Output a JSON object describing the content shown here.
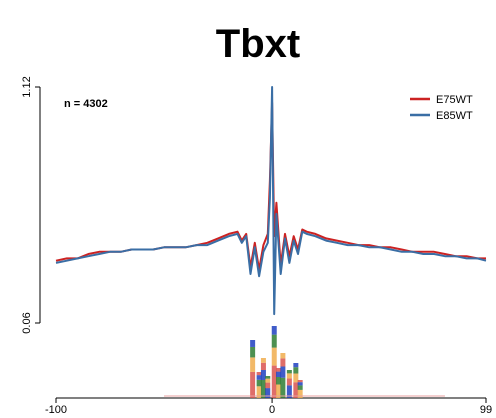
{
  "chart_data": {
    "type": "line",
    "title": "Tbxt",
    "annotation": "n = 4302",
    "xlim": [
      -100,
      99
    ],
    "ylim": [
      0.06,
      1.12
    ],
    "x_ticks": [
      -100,
      0,
      99
    ],
    "y_ticks": [
      0.06,
      1.12
    ],
    "x_tick_labels": [
      "-100",
      "0",
      "99"
    ],
    "y_tick_labels": [
      "0.06",
      "1.12"
    ],
    "legend_position": "top-right",
    "grid": false,
    "colors": {
      "E75WT": "#cc2222",
      "E85WT": "#3a6ea5"
    },
    "series": [
      {
        "name": "E75WT",
        "x": [
          -100,
          -95,
          -90,
          -85,
          -80,
          -75,
          -70,
          -65,
          -60,
          -55,
          -50,
          -45,
          -40,
          -35,
          -30,
          -25,
          -20,
          -16,
          -14,
          -12,
          -10,
          -8,
          -6,
          -4,
          -2,
          -1,
          0,
          1,
          2,
          4,
          6,
          8,
          10,
          12,
          14,
          16,
          20,
          25,
          30,
          35,
          40,
          45,
          50,
          55,
          60,
          65,
          70,
          75,
          80,
          85,
          90,
          95,
          99
        ],
        "values": [
          0.34,
          0.35,
          0.35,
          0.37,
          0.38,
          0.38,
          0.38,
          0.39,
          0.39,
          0.39,
          0.4,
          0.4,
          0.4,
          0.41,
          0.42,
          0.44,
          0.46,
          0.47,
          0.43,
          0.46,
          0.31,
          0.42,
          0.3,
          0.41,
          0.46,
          0.7,
          1.05,
          0.45,
          0.6,
          0.32,
          0.46,
          0.36,
          0.45,
          0.39,
          0.48,
          0.47,
          0.46,
          0.44,
          0.43,
          0.42,
          0.41,
          0.41,
          0.4,
          0.4,
          0.39,
          0.38,
          0.38,
          0.38,
          0.37,
          0.36,
          0.36,
          0.35,
          0.35
        ]
      },
      {
        "name": "E85WT",
        "x": [
          -100,
          -95,
          -90,
          -85,
          -80,
          -75,
          -70,
          -65,
          -60,
          -55,
          -50,
          -45,
          -40,
          -35,
          -30,
          -25,
          -20,
          -16,
          -14,
          -12,
          -10,
          -8,
          -6,
          -4,
          -2,
          -1,
          0,
          1,
          2,
          4,
          6,
          8,
          10,
          12,
          14,
          16,
          20,
          25,
          30,
          35,
          40,
          45,
          50,
          55,
          60,
          65,
          70,
          75,
          80,
          85,
          90,
          95,
          99
        ],
        "values": [
          0.33,
          0.34,
          0.35,
          0.36,
          0.37,
          0.38,
          0.38,
          0.39,
          0.39,
          0.39,
          0.4,
          0.4,
          0.4,
          0.41,
          0.41,
          0.43,
          0.45,
          0.46,
          0.42,
          0.45,
          0.28,
          0.4,
          0.27,
          0.38,
          0.42,
          0.62,
          1.12,
          0.1,
          0.55,
          0.28,
          0.44,
          0.33,
          0.43,
          0.37,
          0.47,
          0.46,
          0.45,
          0.43,
          0.42,
          0.41,
          0.41,
          0.4,
          0.4,
          0.39,
          0.38,
          0.38,
          0.37,
          0.37,
          0.36,
          0.36,
          0.35,
          0.35,
          0.34
        ]
      }
    ]
  }
}
